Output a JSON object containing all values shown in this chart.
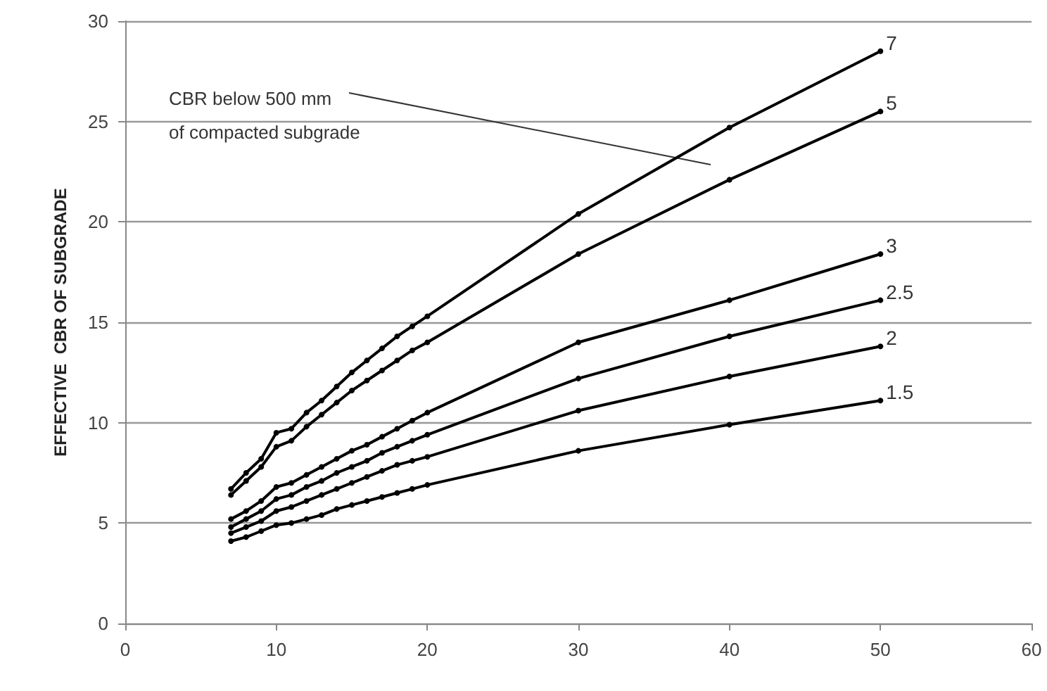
{
  "chart_data": {
    "type": "line",
    "ylabel": "EFFECTIVE  CBR OF SUBGRADE",
    "x": [
      7,
      8,
      9,
      10,
      11,
      12,
      13,
      14,
      15,
      16,
      17,
      18,
      19,
      20,
      30,
      40,
      50
    ],
    "series": [
      {
        "name": "7",
        "color": "#000000",
        "values": [
          6.7,
          7.5,
          8.2,
          9.5,
          9.7,
          10.5,
          11.1,
          11.8,
          12.5,
          13.1,
          13.7,
          14.3,
          14.8,
          15.3,
          20.4,
          24.7,
          28.5
        ]
      },
      {
        "name": "5",
        "color": "#000000",
        "values": [
          6.4,
          7.1,
          7.8,
          8.8,
          9.1,
          9.8,
          10.4,
          11.0,
          11.6,
          12.1,
          12.6,
          13.1,
          13.6,
          14.0,
          18.4,
          22.1,
          25.5
        ]
      },
      {
        "name": "3",
        "color": "#000000",
        "values": [
          5.2,
          5.6,
          6.1,
          6.8,
          7.0,
          7.4,
          7.8,
          8.2,
          8.6,
          8.9,
          9.3,
          9.7,
          10.1,
          10.5,
          14.0,
          16.1,
          18.4
        ]
      },
      {
        "name": "2.5",
        "color": "#000000",
        "values": [
          4.8,
          5.2,
          5.6,
          6.2,
          6.4,
          6.8,
          7.1,
          7.5,
          7.8,
          8.1,
          8.5,
          8.8,
          9.1,
          9.4,
          12.2,
          14.3,
          16.1
        ]
      },
      {
        "name": "2",
        "color": "#000000",
        "values": [
          4.5,
          4.8,
          5.1,
          5.6,
          5.8,
          6.1,
          6.4,
          6.7,
          7.0,
          7.3,
          7.6,
          7.9,
          8.1,
          8.3,
          10.6,
          12.3,
          13.8
        ]
      },
      {
        "name": "1.5",
        "color": "#000000",
        "values": [
          4.1,
          4.3,
          4.6,
          4.9,
          5.0,
          5.2,
          5.4,
          5.7,
          5.9,
          6.1,
          6.3,
          6.5,
          6.7,
          6.9,
          8.6,
          9.9,
          11.1
        ]
      }
    ],
    "annotations": [
      "CBR below 500 mm\nof compacted subgrade"
    ],
    "xlim": [
      0,
      60
    ],
    "xticks": [
      0,
      10,
      20,
      30,
      40,
      50,
      60
    ],
    "ylim": [
      0,
      30
    ],
    "yticks": [
      0,
      5,
      10,
      15,
      20,
      25,
      30
    ],
    "grid": "y",
    "legend": false,
    "marker": "circle",
    "line_style": "solid"
  }
}
